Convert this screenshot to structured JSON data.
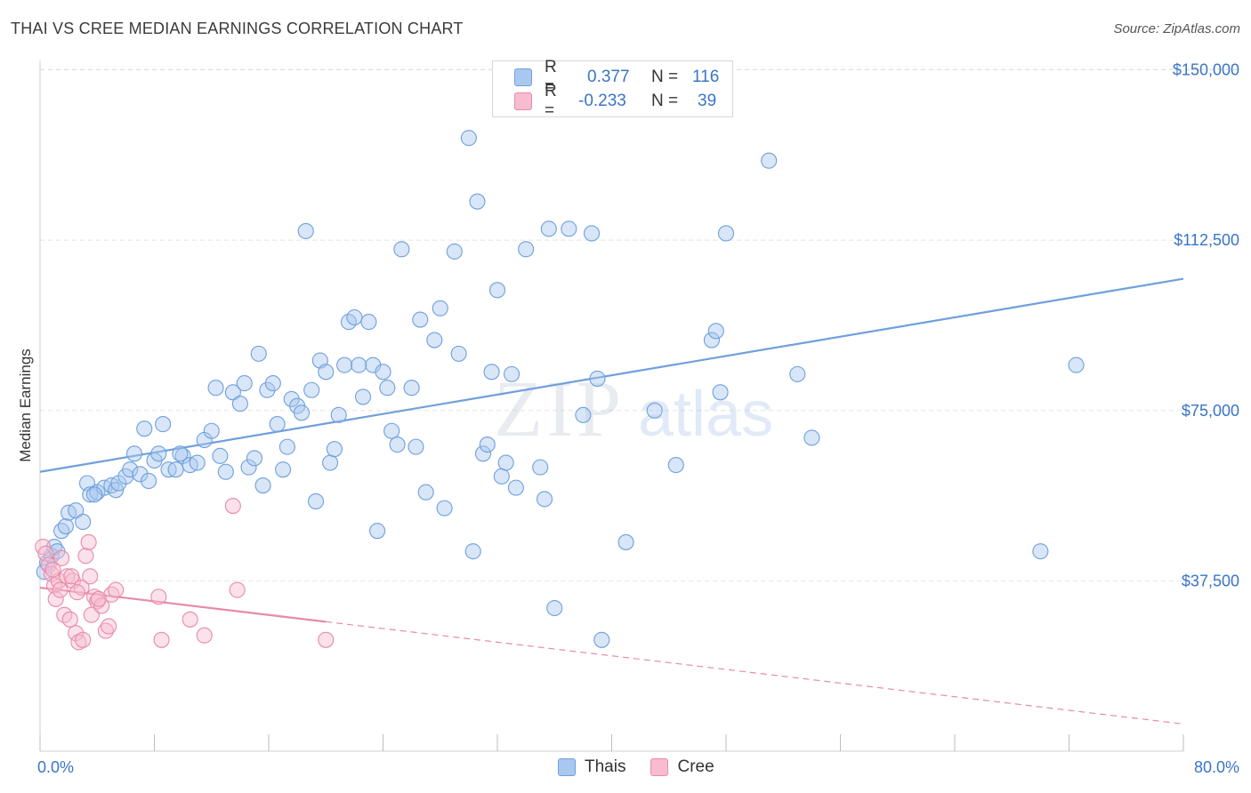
{
  "title": "THAI VS CREE MEDIAN EARNINGS CORRELATION CHART",
  "source": "Source: ZipAtlas.com",
  "legend": {
    "rows": [
      {
        "r_label": "R =",
        "r_value": "0.377",
        "n_label": "N =",
        "n_value": "116",
        "color": "#a9c8f0",
        "border": "#6f9fdc"
      },
      {
        "r_label": "R =",
        "r_value": "-0.233",
        "n_label": "N =",
        "n_value": "39",
        "color": "#f7bcd0",
        "border": "#e88aa8"
      }
    ]
  },
  "bottom_legend": [
    {
      "label": "Thais",
      "color": "#a9c8f0",
      "border": "#6f9fdc"
    },
    {
      "label": "Cree",
      "color": "#f7bcd0",
      "border": "#e88aa8"
    }
  ],
  "watermark": {
    "zip": "ZIP",
    "atlas": "atlas"
  },
  "chart_data": {
    "type": "scatter",
    "title": "THAI VS CREE MEDIAN EARNINGS CORRELATION CHART",
    "xlabel": "",
    "ylabel": "Median Earnings",
    "xlim": [
      0,
      80
    ],
    "ylim": [
      0,
      155000
    ],
    "x_tick_labels": [
      "0.0%",
      "80.0%"
    ],
    "y_ticks": [
      37500,
      75000,
      112500,
      150000
    ],
    "y_tick_labels": [
      "$37,500",
      "$75,000",
      "$112,500",
      "$150,000"
    ],
    "grid": true,
    "legend_position": "top-center",
    "series": [
      {
        "name": "Thais",
        "color": "#6f9fdc",
        "fill": "#a9c8f0",
        "trend": {
          "x": [
            0,
            80
          ],
          "y": [
            61500,
            104000
          ],
          "style": "solid"
        },
        "points": [
          [
            0.3,
            39500
          ],
          [
            0.5,
            41500
          ],
          [
            0.8,
            43000
          ],
          [
            1.0,
            45000
          ],
          [
            1.2,
            44000
          ],
          [
            1.5,
            48500
          ],
          [
            1.8,
            49500
          ],
          [
            2.0,
            52500
          ],
          [
            2.5,
            53000
          ],
          [
            3.0,
            50500
          ],
          [
            3.3,
            59000
          ],
          [
            3.5,
            56500
          ],
          [
            4.0,
            57000
          ],
          [
            4.5,
            58000
          ],
          [
            5.0,
            58500
          ],
          [
            5.3,
            57500
          ],
          [
            5.5,
            59000
          ],
          [
            6.0,
            60500
          ],
          [
            6.3,
            62000
          ],
          [
            6.6,
            65500
          ],
          [
            7.0,
            61000
          ],
          [
            7.3,
            71000
          ],
          [
            7.6,
            59500
          ],
          [
            8.0,
            64000
          ],
          [
            8.3,
            65500
          ],
          [
            8.6,
            72000
          ],
          [
            9.0,
            62000
          ],
          [
            9.5,
            62000
          ],
          [
            10.0,
            65000
          ],
          [
            10.5,
            63000
          ],
          [
            11.0,
            63500
          ],
          [
            11.5,
            68500
          ],
          [
            12.0,
            70500
          ],
          [
            12.3,
            80000
          ],
          [
            12.6,
            65000
          ],
          [
            13.0,
            61500
          ],
          [
            13.5,
            79000
          ],
          [
            14.0,
            76500
          ],
          [
            14.3,
            81000
          ],
          [
            14.6,
            62500
          ],
          [
            15.0,
            64500
          ],
          [
            15.3,
            87500
          ],
          [
            15.6,
            58500
          ],
          [
            15.9,
            79500
          ],
          [
            16.3,
            81000
          ],
          [
            16.6,
            72000
          ],
          [
            17.0,
            62000
          ],
          [
            17.3,
            67000
          ],
          [
            17.6,
            77500
          ],
          [
            18.0,
            76000
          ],
          [
            18.3,
            74500
          ],
          [
            18.6,
            114500
          ],
          [
            19.0,
            79500
          ],
          [
            19.3,
            55000
          ],
          [
            19.6,
            86000
          ],
          [
            20.0,
            83500
          ],
          [
            20.3,
            63500
          ],
          [
            20.6,
            66500
          ],
          [
            20.9,
            74000
          ],
          [
            21.3,
            85000
          ],
          [
            21.6,
            94500
          ],
          [
            22.0,
            95500
          ],
          [
            22.3,
            85000
          ],
          [
            22.6,
            78000
          ],
          [
            23.0,
            94500
          ],
          [
            23.3,
            85000
          ],
          [
            23.6,
            48500
          ],
          [
            24.0,
            83500
          ],
          [
            24.3,
            80000
          ],
          [
            24.6,
            70500
          ],
          [
            25.0,
            67500
          ],
          [
            25.3,
            110500
          ],
          [
            26.0,
            80000
          ],
          [
            26.3,
            67000
          ],
          [
            26.6,
            95000
          ],
          [
            27.0,
            57000
          ],
          [
            27.6,
            90500
          ],
          [
            28.0,
            97500
          ],
          [
            28.3,
            53500
          ],
          [
            29.0,
            110000
          ],
          [
            29.3,
            87500
          ],
          [
            30.0,
            135000
          ],
          [
            30.3,
            44000
          ],
          [
            30.6,
            121000
          ],
          [
            31.0,
            65500
          ],
          [
            31.3,
            67500
          ],
          [
            31.6,
            83500
          ],
          [
            32.0,
            101500
          ],
          [
            32.3,
            60500
          ],
          [
            32.6,
            63500
          ],
          [
            33.0,
            83000
          ],
          [
            33.3,
            58000
          ],
          [
            34.0,
            110500
          ],
          [
            35.0,
            62500
          ],
          [
            35.3,
            55500
          ],
          [
            35.6,
            115000
          ],
          [
            36.0,
            31500
          ],
          [
            37.0,
            115000
          ],
          [
            38.0,
            74000
          ],
          [
            38.6,
            114000
          ],
          [
            39.0,
            82000
          ],
          [
            39.3,
            24500
          ],
          [
            41.0,
            46000
          ],
          [
            43.0,
            75000
          ],
          [
            44.5,
            63000
          ],
          [
            47.0,
            90500
          ],
          [
            47.3,
            92500
          ],
          [
            47.6,
            79000
          ],
          [
            48.0,
            114000
          ],
          [
            51.0,
            130000
          ],
          [
            53.0,
            83000
          ],
          [
            54.0,
            69000
          ],
          [
            70.0,
            44000
          ],
          [
            72.5,
            85000
          ],
          [
            3.8,
            56500
          ],
          [
            9.8,
            65500
          ]
        ]
      },
      {
        "name": "Cree",
        "color": "#e88aa8",
        "fill": "#f7bcd0",
        "trend": {
          "x": [
            0,
            20
          ],
          "y": [
            36000,
            28500
          ],
          "style": "solid"
        },
        "trend_extension": {
          "x": [
            20,
            80
          ],
          "y": [
            28500,
            6000
          ],
          "style": "dashed"
        },
        "points": [
          [
            0.2,
            45000
          ],
          [
            0.4,
            43500
          ],
          [
            0.6,
            41000
          ],
          [
            0.8,
            39000
          ],
          [
            1.0,
            36500
          ],
          [
            1.1,
            33500
          ],
          [
            1.3,
            37500
          ],
          [
            1.5,
            42500
          ],
          [
            1.7,
            30000
          ],
          [
            1.9,
            38500
          ],
          [
            2.1,
            29000
          ],
          [
            2.3,
            37500
          ],
          [
            2.5,
            26000
          ],
          [
            2.7,
            24000
          ],
          [
            2.9,
            36000
          ],
          [
            3.0,
            24500
          ],
          [
            3.2,
            43000
          ],
          [
            3.4,
            46000
          ],
          [
            3.5,
            38500
          ],
          [
            3.6,
            30000
          ],
          [
            3.8,
            34000
          ],
          [
            4.0,
            33000
          ],
          [
            4.3,
            32000
          ],
          [
            4.6,
            26500
          ],
          [
            4.8,
            27500
          ],
          [
            5.0,
            34500
          ],
          [
            5.3,
            35500
          ],
          [
            8.3,
            34000
          ],
          [
            8.5,
            24500
          ],
          [
            10.5,
            29000
          ],
          [
            11.5,
            25500
          ],
          [
            13.5,
            54000
          ],
          [
            13.8,
            35500
          ],
          [
            20.0,
            24500
          ],
          [
            0.9,
            40000
          ],
          [
            1.4,
            35500
          ],
          [
            2.2,
            38500
          ],
          [
            2.6,
            35000
          ],
          [
            4.1,
            33500
          ]
        ]
      }
    ]
  }
}
